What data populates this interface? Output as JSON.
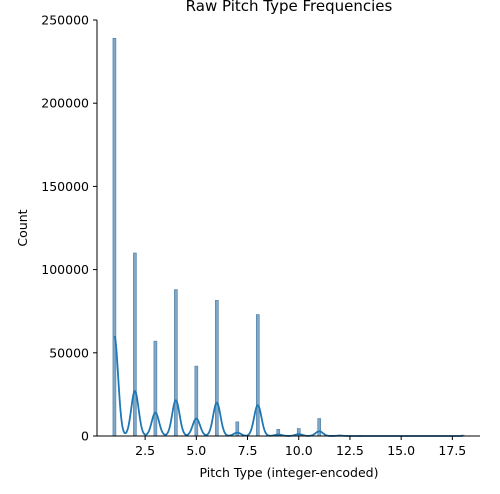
{
  "chart_data": {
    "type": "histogram",
    "title": "Raw Pitch Type Frequencies",
    "xlabel": "Pitch Type (integer-encoded)",
    "ylabel": "Count",
    "xlim": [
      0.15,
      18.85
    ],
    "ylim": [
      0,
      250000
    ],
    "x_ticks": [
      2.5,
      5.0,
      7.5,
      10.0,
      12.5,
      15.0,
      17.5
    ],
    "x_tick_labels": [
      "2.5",
      "5.0",
      "7.5",
      "10.0",
      "12.5",
      "15.0",
      "17.5"
    ],
    "y_ticks": [
      0,
      50000,
      100000,
      150000,
      200000,
      250000
    ],
    "y_tick_labels": [
      "0",
      "50000",
      "100000",
      "150000",
      "200000",
      "250000"
    ],
    "bar_color": "#7ea6c6",
    "bar_edge_color": "#4f7fa6",
    "kde_color": "#1f77b4",
    "bars": [
      {
        "x": 1,
        "count": 239000
      },
      {
        "x": 2,
        "count": 110000
      },
      {
        "x": 3,
        "count": 57000
      },
      {
        "x": 4,
        "count": 88000
      },
      {
        "x": 5,
        "count": 42000
      },
      {
        "x": 6,
        "count": 81500
      },
      {
        "x": 7,
        "count": 8500
      },
      {
        "x": 8,
        "count": 73000
      },
      {
        "x": 9,
        "count": 4000
      },
      {
        "x": 10,
        "count": 4500
      },
      {
        "x": 11,
        "count": 10500
      },
      {
        "x": 12,
        "count": 600
      },
      {
        "x": 13,
        "count": 300
      },
      {
        "x": 14,
        "count": 200
      },
      {
        "x": 15,
        "count": 150
      },
      {
        "x": 16,
        "count": 100
      },
      {
        "x": 17,
        "count": 100
      },
      {
        "x": 18,
        "count": 500
      }
    ],
    "kde": {
      "bandwidth": 0.18,
      "peaks": [
        {
          "x": 1,
          "y": 60000
        },
        {
          "x": 2,
          "y": 27000
        },
        {
          "x": 3,
          "y": 14000
        },
        {
          "x": 4,
          "y": 21500
        },
        {
          "x": 5,
          "y": 10500
        },
        {
          "x": 6,
          "y": 20000
        },
        {
          "x": 7,
          "y": 2000
        },
        {
          "x": 8,
          "y": 18500
        },
        {
          "x": 9,
          "y": 900
        },
        {
          "x": 10,
          "y": 1100
        },
        {
          "x": 11,
          "y": 2800
        },
        {
          "x": 12,
          "y": 200
        }
      ]
    },
    "grid": false,
    "legend": "none"
  }
}
